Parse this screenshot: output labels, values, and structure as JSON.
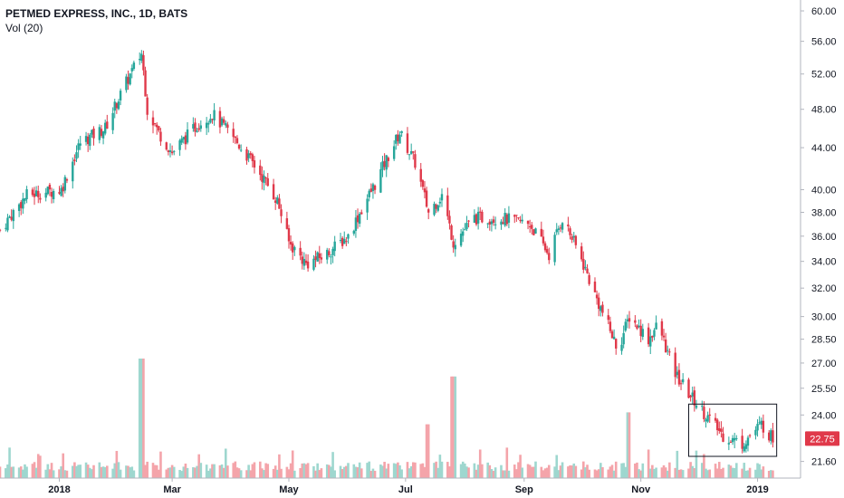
{
  "header": {
    "symbol_title": "PETMED EXPRESS, INC., 1D, BATS",
    "volume_label": "Vol (20)"
  },
  "colors": {
    "up": "#26a69a",
    "down": "#e0394a",
    "vol_up": "#9ed7cf",
    "vol_down": "#f4a4aa",
    "axis": "#b2b5be",
    "last_price_bg": "#e0394a"
  },
  "chart_data": {
    "type": "candlestick",
    "title": "PETMED EXPRESS, INC., 1D, BATS",
    "y_scale": "log",
    "ylim": [
      20.8,
      61.5
    ],
    "y_ticks": [
      21.6,
      22.75,
      24.0,
      25.5,
      27.0,
      28.5,
      30.0,
      32.0,
      34.0,
      36.0,
      38.0,
      40.0,
      44.0,
      48.0,
      52.0,
      56.0,
      60.0
    ],
    "y_tick_labels": [
      "21.60",
      "22.75",
      "24.00",
      "25.50",
      "27.00",
      "28.50",
      "30.00",
      "32.00",
      "34.00",
      "36.00",
      "38.00",
      "40.00",
      "44.00",
      "48.00",
      "52.00",
      "56.00",
      "60.00"
    ],
    "x_ticks": [
      "2018",
      "Mar",
      "May",
      "Jul",
      "Sep",
      "Nov",
      "2019"
    ],
    "last_price": "22.75",
    "grid": false,
    "price_path": [
      [
        "2017-12-01",
        36.5
      ],
      [
        "2017-12-15",
        39.5
      ],
      [
        "2018-01-02",
        40.0
      ],
      [
        "2018-01-12",
        44.5
      ],
      [
        "2018-01-25",
        46.0
      ],
      [
        "2018-02-05",
        51.0
      ],
      [
        "2018-02-13",
        54.5
      ],
      [
        "2018-02-16",
        48.0
      ],
      [
        "2018-02-22",
        45.5
      ],
      [
        "2018-03-01",
        43.5
      ],
      [
        "2018-03-15",
        46.5
      ],
      [
        "2018-03-22",
        47.5
      ],
      [
        "2018-04-02",
        45.0
      ],
      [
        "2018-04-16",
        41.5
      ],
      [
        "2018-04-25",
        39.0
      ],
      [
        "2018-05-01",
        35.5
      ],
      [
        "2018-05-10",
        33.8
      ],
      [
        "2018-05-20",
        34.5
      ],
      [
        "2018-06-01",
        36.0
      ],
      [
        "2018-06-15",
        40.5
      ],
      [
        "2018-06-28",
        45.5
      ],
      [
        "2018-07-06",
        42.5
      ],
      [
        "2018-07-13",
        38.0
      ],
      [
        "2018-07-20",
        39.5
      ],
      [
        "2018-07-26",
        35.5
      ],
      [
        "2018-08-06",
        37.5
      ],
      [
        "2018-08-20",
        37.5
      ],
      [
        "2018-09-04",
        37.0
      ],
      [
        "2018-09-14",
        34.5
      ],
      [
        "2018-09-21",
        37.5
      ],
      [
        "2018-09-30",
        34.5
      ],
      [
        "2018-10-08",
        31.5
      ],
      [
        "2018-10-20",
        27.8
      ],
      [
        "2018-10-26",
        30.0
      ],
      [
        "2018-11-05",
        28.5
      ],
      [
        "2018-11-10",
        29.5
      ],
      [
        "2018-11-18",
        26.5
      ],
      [
        "2018-11-26",
        25.2
      ],
      [
        "2018-12-05",
        24.0
      ],
      [
        "2018-12-14",
        22.9
      ],
      [
        "2018-12-24",
        22.5
      ],
      [
        "2019-01-03",
        23.5
      ],
      [
        "2019-01-09",
        22.75
      ]
    ],
    "volume_spikes": [
      {
        "date": "2018-02-13",
        "volume_relative": 1.0
      },
      {
        "date": "2018-07-26",
        "volume_relative": 0.85
      },
      {
        "date": "2018-10-26",
        "volume_relative": 0.55
      },
      {
        "date": "2018-07-13",
        "volume_relative": 0.45
      }
    ],
    "annotations": [
      {
        "type": "rectangle",
        "from_date": "2018-11-26",
        "to_date": "2019-01-11",
        "price_low": 21.85,
        "price_high": 24.6
      }
    ]
  }
}
